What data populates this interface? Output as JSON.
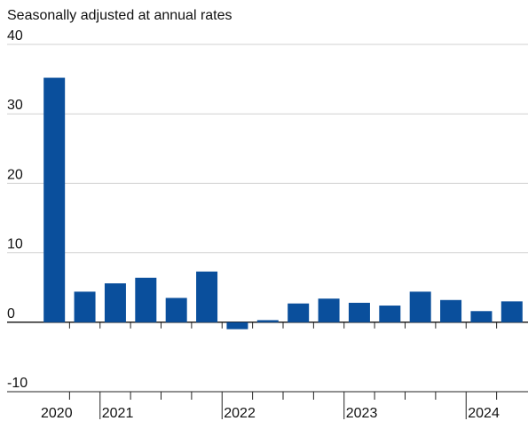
{
  "chart_data": {
    "type": "bar",
    "title": "Seasonally adjusted at annual rates",
    "categories": [
      "2020",
      null,
      "2021",
      null,
      null,
      null,
      "2022",
      null,
      null,
      null,
      "2023",
      null,
      null,
      null,
      "2024",
      null
    ],
    "values": [
      35.2,
      4.4,
      5.6,
      6.4,
      3.5,
      7.3,
      -1.0,
      0.3,
      2.7,
      3.4,
      2.8,
      2.4,
      4.4,
      3.2,
      1.6,
      3.0
    ],
    "color": "#0a4f9c",
    "ylim": [
      -10,
      40
    ],
    "yticks": [
      -10,
      0,
      10,
      20,
      30,
      40
    ],
    "grid": true
  }
}
